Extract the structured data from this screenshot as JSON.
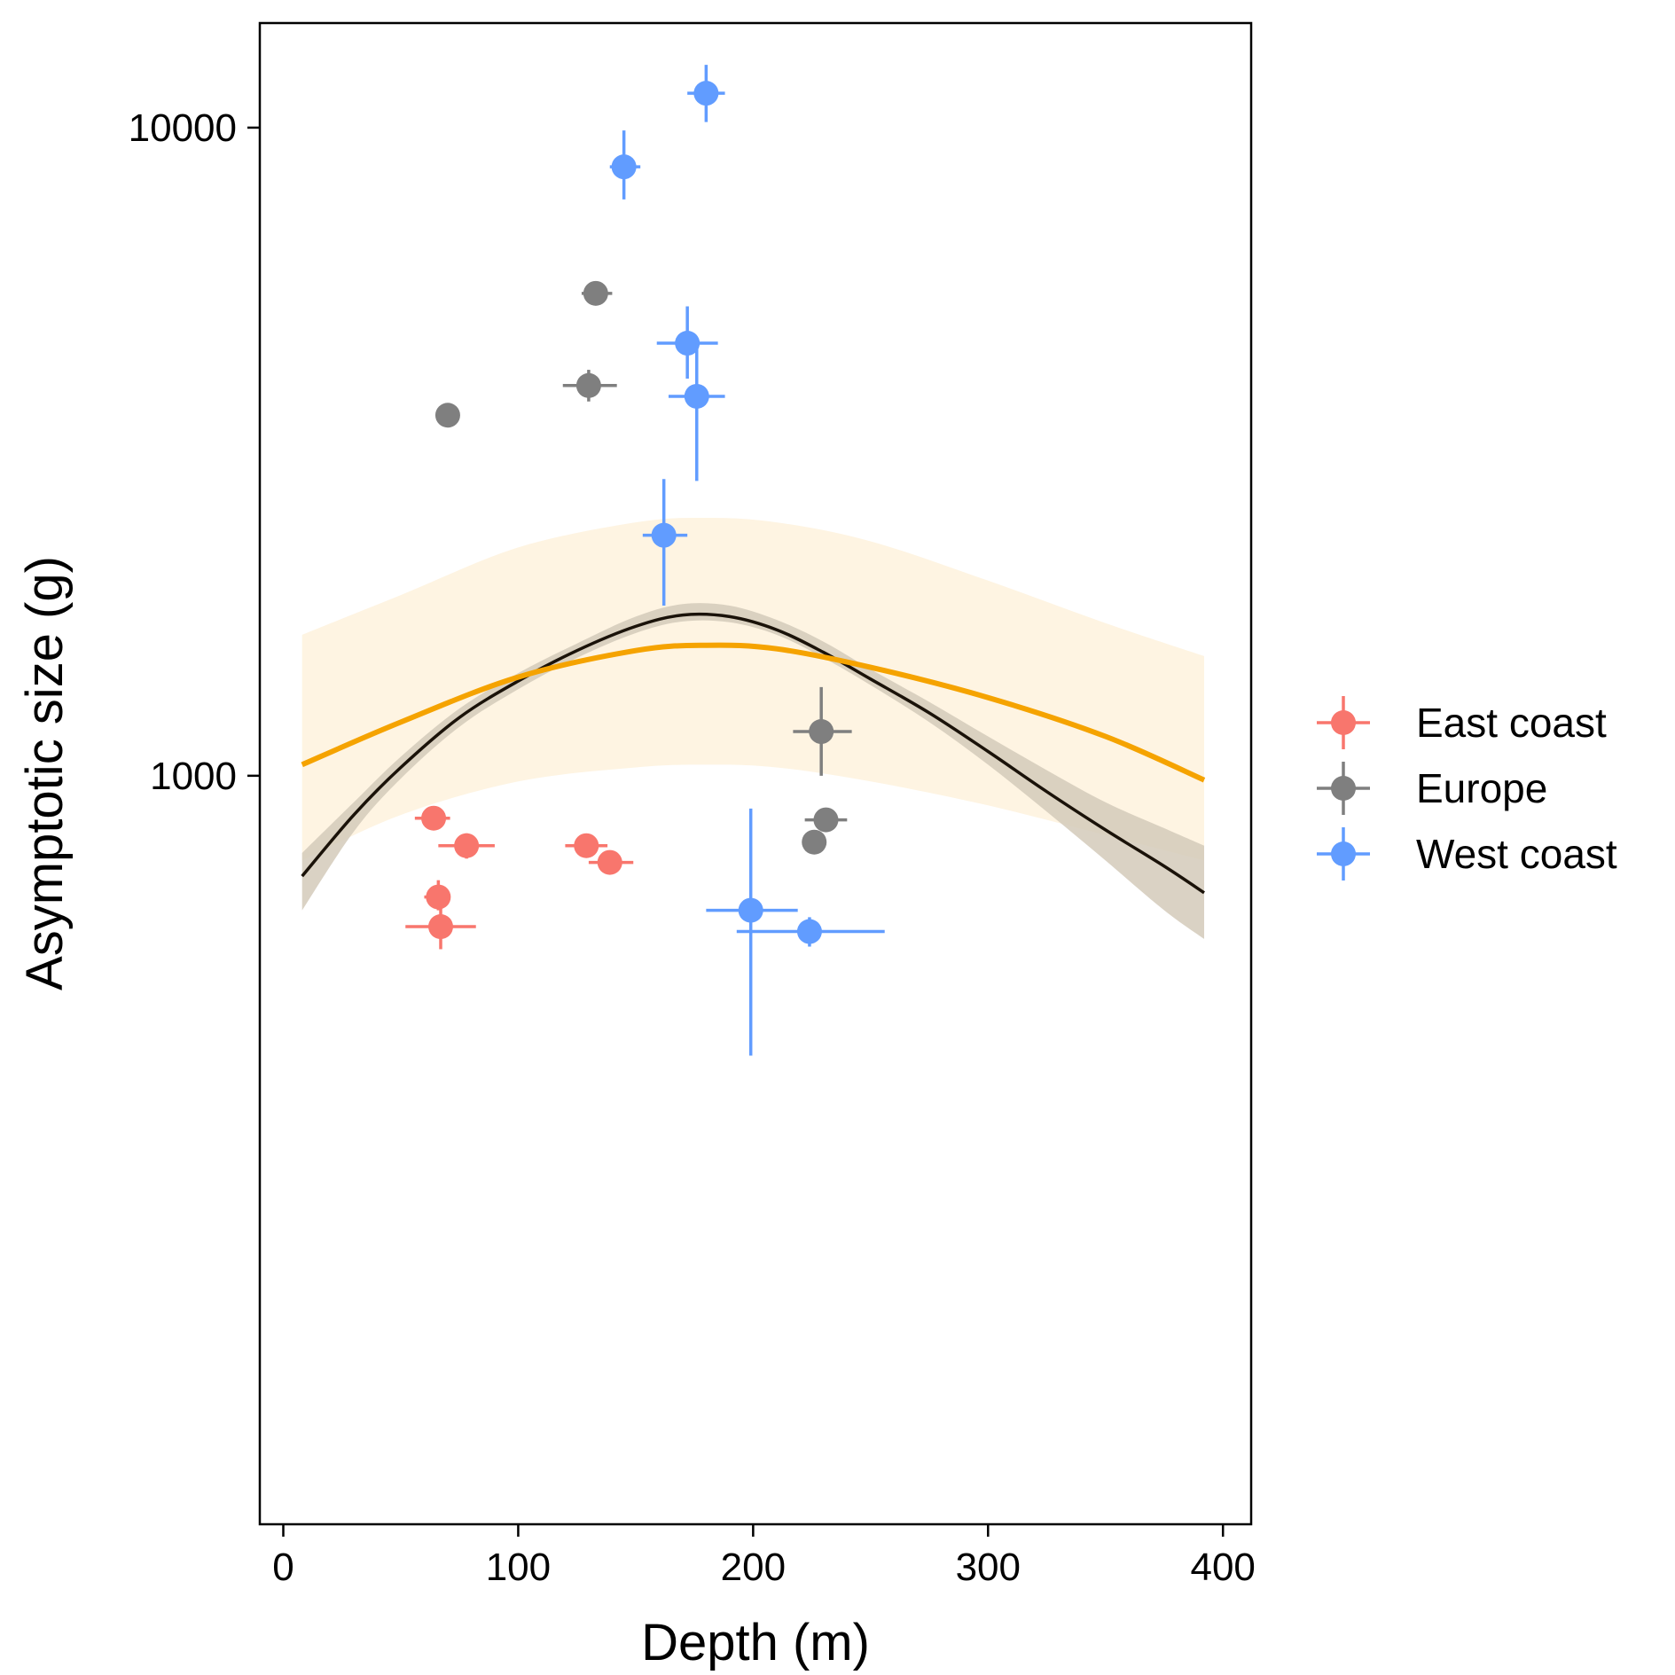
{
  "chart_data": {
    "type": "scatter",
    "title": "",
    "xlabel": "Depth (m)",
    "ylabel": "Asymptotic size (g)",
    "xlim": [
      -10,
      412
    ],
    "ylim": [
      70,
      14500
    ],
    "yscale": "log",
    "x_ticks": [
      0,
      100,
      200,
      300,
      400
    ],
    "x_tick_labels": [
      "0",
      "100",
      "200",
      "300",
      "400"
    ],
    "y_ticks": [
      1000,
      10000
    ],
    "y_tick_labels": [
      "1000",
      "10000"
    ],
    "grid": false,
    "legend": {
      "placement": "right",
      "entries": [
        "East coast",
        "Europe",
        "West coast"
      ]
    },
    "colors": {
      "East coast": "#F8766D",
      "Europe": "#7F7F7F",
      "West coast": "#619CFF",
      "fit_line": "#F5A300",
      "fit_band": "#FEF4E2",
      "smooth_line": "#1a1209",
      "smooth_band": "#D4CABA"
    },
    "series": [
      {
        "name": "East coast",
        "points": [
          {
            "x": 64,
            "y": 860,
            "xerr": [
              56,
              71
            ],
            "yerr": [
              830,
              890
            ]
          },
          {
            "x": 78,
            "y": 780,
            "xerr": [
              66,
              90
            ],
            "yerr": [
              745,
              815
            ]
          },
          {
            "x": 66,
            "y": 650,
            "xerr": [
              60,
              71
            ],
            "yerr": [
              620,
              690
            ]
          },
          {
            "x": 67,
            "y": 585,
            "xerr": [
              52,
              82
            ],
            "yerr": [
              540,
              635
            ]
          },
          {
            "x": 129,
            "y": 780,
            "xerr": [
              120,
              138
            ],
            "yerr": [
              760,
              800
            ]
          },
          {
            "x": 139,
            "y": 735,
            "xerr": [
              130,
              149
            ],
            "yerr": [
              715,
              755
            ]
          }
        ]
      },
      {
        "name": "Europe",
        "points": [
          {
            "x": 70,
            "y": 3600,
            "xerr": [
              66,
              74
            ],
            "yerr": [
              3500,
              3700
            ]
          },
          {
            "x": 133,
            "y": 5550,
            "xerr": [
              127,
              140
            ],
            "yerr": [
              5400,
              5700
            ]
          },
          {
            "x": 130,
            "y": 4000,
            "xerr": [
              119,
              142
            ],
            "yerr": [
              3780,
              4230
            ]
          },
          {
            "x": 229,
            "y": 1170,
            "xerr": [
              217,
              242
            ],
            "yerr": [
              1000,
              1370
            ]
          },
          {
            "x": 231,
            "y": 855,
            "xerr": [
              222,
              240
            ],
            "yerr": [
              835,
              875
            ]
          },
          {
            "x": 226,
            "y": 790,
            "xerr": [
              221,
              231
            ],
            "yerr": [
              775,
              805
            ]
          }
        ]
      },
      {
        "name": "West coast",
        "points": [
          {
            "x": 180,
            "y": 11300,
            "xerr": [
              172,
              188
            ],
            "yerr": [
              10200,
              12500
            ]
          },
          {
            "x": 145,
            "y": 8700,
            "xerr": [
              139,
              152
            ],
            "yerr": [
              7750,
              9900
            ]
          },
          {
            "x": 172,
            "y": 4650,
            "xerr": [
              159,
              185
            ],
            "yerr": [
              4100,
              5300
            ]
          },
          {
            "x": 176,
            "y": 3850,
            "xerr": [
              164,
              188
            ],
            "yerr": [
              2850,
              4650
            ]
          },
          {
            "x": 162,
            "y": 2350,
            "xerr": [
              153,
              172
            ],
            "yerr": [
              1830,
              2870
            ]
          },
          {
            "x": 199,
            "y": 620,
            "xerr": [
              180,
              219
            ],
            "yerr": [
              370,
              890
            ]
          },
          {
            "x": 224,
            "y": 575,
            "xerr": [
              193,
              256
            ],
            "yerr": [
              545,
              605
            ]
          }
        ]
      }
    ],
    "fit_line": {
      "x": [
        8,
        50,
        100,
        150,
        180,
        210,
        250,
        300,
        350,
        392
      ],
      "y": [
        1040,
        1210,
        1420,
        1560,
        1590,
        1570,
        1470,
        1320,
        1150,
        985
      ],
      "band_lower": [
        740,
        870,
        980,
        1030,
        1040,
        1030,
        980,
        900,
        810,
        740
      ],
      "band_upper": [
        1650,
        1900,
        2250,
        2460,
        2500,
        2460,
        2300,
        2000,
        1720,
        1530
      ]
    },
    "smooth_line": {
      "x": [
        8,
        30,
        50,
        75,
        100,
        125,
        150,
        170,
        190,
        210,
        230,
        250,
        275,
        300,
        325,
        350,
        375,
        392
      ],
      "y": [
        700,
        870,
        1030,
        1230,
        1400,
        1560,
        1700,
        1770,
        1760,
        1680,
        1550,
        1410,
        1250,
        1090,
        945,
        825,
        725,
        660
      ],
      "band_lower": [
        620,
        820,
        990,
        1190,
        1360,
        1520,
        1660,
        1730,
        1725,
        1650,
        1520,
        1380,
        1210,
        1040,
        880,
        740,
        620,
        560
      ],
      "band_upper": [
        760,
        910,
        1070,
        1270,
        1440,
        1600,
        1760,
        1840,
        1830,
        1740,
        1610,
        1460,
        1300,
        1150,
        1020,
        910,
        830,
        780
      ]
    }
  }
}
